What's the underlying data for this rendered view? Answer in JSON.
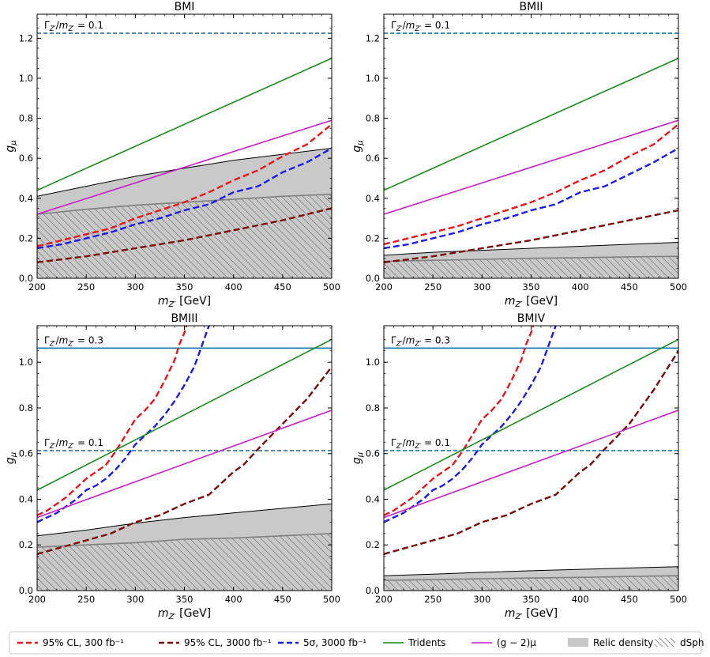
{
  "chart_data": [
    {
      "type": "line",
      "title": "BMI",
      "xlabel": "m_{Z'} [GeV]",
      "ylabel": "g_μ",
      "xlim": [
        200,
        500
      ],
      "ylim": [
        0,
        1.32
      ],
      "xticks": [
        200,
        250,
        300,
        350,
        400,
        450,
        500
      ],
      "yticks": [
        0.0,
        0.2,
        0.4,
        0.6,
        0.8,
        1.0,
        1.2
      ],
      "width_lines": [
        {
          "label": "Γ_{Z'}/m_{Z'} = 0.1",
          "y": 1.225,
          "style": "dashed",
          "color": "#1f77b4"
        }
      ],
      "series": [
        {
          "name": "95% CL, 300 fb^-1",
          "style": "dashed",
          "color": "#e8151b",
          "x": [
            200,
            225,
            250,
            275,
            300,
            325,
            350,
            375,
            400,
            425,
            450,
            475,
            500
          ],
          "y": [
            0.16,
            0.19,
            0.22,
            0.25,
            0.3,
            0.34,
            0.38,
            0.43,
            0.49,
            0.54,
            0.61,
            0.67,
            0.77
          ]
        },
        {
          "name": "95% CL, 3000 fb^-1",
          "style": "dashed",
          "color": "#7a0a0a",
          "x": [
            200,
            250,
            300,
            350,
            400,
            450,
            500
          ],
          "y": [
            0.08,
            0.11,
            0.15,
            0.19,
            0.24,
            0.29,
            0.35
          ]
        },
        {
          "name": "5σ, 3000 fb^-1",
          "style": "dashed",
          "color": "#1a1aeb",
          "x": [
            200,
            225,
            250,
            275,
            300,
            325,
            350,
            375,
            400,
            425,
            450,
            475,
            500
          ],
          "y": [
            0.15,
            0.17,
            0.2,
            0.23,
            0.27,
            0.3,
            0.34,
            0.37,
            0.43,
            0.46,
            0.53,
            0.58,
            0.65
          ]
        },
        {
          "name": "Tridents",
          "style": "solid",
          "color": "#1a8a1a",
          "x": [
            200,
            500
          ],
          "y": [
            0.44,
            1.1
          ]
        },
        {
          "name": "(g-2)_μ",
          "style": "solid",
          "color": "#c81fc8",
          "x": [
            200,
            500
          ],
          "y": [
            0.32,
            0.79
          ]
        }
      ],
      "relic_density": {
        "x": [
          200,
          250,
          300,
          350,
          400,
          450,
          500
        ],
        "upper": [
          0.41,
          0.46,
          0.51,
          0.55,
          0.59,
          0.62,
          0.65
        ],
        "lower": [
          0.32,
          0.345,
          0.365,
          0.38,
          0.395,
          0.41,
          0.42
        ]
      },
      "dsph": {
        "x": [
          200,
          250,
          300,
          350,
          400,
          450,
          500
        ],
        "upper": [
          0.32,
          0.345,
          0.365,
          0.38,
          0.395,
          0.41,
          0.42
        ]
      }
    },
    {
      "type": "line",
      "title": "BMII",
      "xlabel": "m_{Z'} [GeV]",
      "ylabel": "g_μ",
      "xlim": [
        200,
        500
      ],
      "ylim": [
        0,
        1.32
      ],
      "xticks": [
        200,
        250,
        300,
        350,
        400,
        450,
        500
      ],
      "yticks": [
        0.0,
        0.2,
        0.4,
        0.6,
        0.8,
        1.0,
        1.2
      ],
      "width_lines": [
        {
          "label": "Γ_{Z'}/m_{Z'} = 0.1",
          "y": 1.225,
          "style": "dashed",
          "color": "#1f77b4"
        }
      ],
      "series": [
        {
          "name": "95% CL, 300 fb^-1",
          "style": "dashed",
          "color": "#e8151b",
          "x": [
            200,
            225,
            250,
            275,
            300,
            325,
            350,
            375,
            400,
            425,
            450,
            475,
            500
          ],
          "y": [
            0.17,
            0.2,
            0.23,
            0.26,
            0.3,
            0.34,
            0.38,
            0.43,
            0.49,
            0.54,
            0.61,
            0.67,
            0.77
          ]
        },
        {
          "name": "95% CL, 3000 fb^-1",
          "style": "dashed",
          "color": "#7a0a0a",
          "x": [
            200,
            250,
            300,
            350,
            400,
            450,
            500
          ],
          "y": [
            0.08,
            0.11,
            0.15,
            0.19,
            0.24,
            0.29,
            0.34
          ]
        },
        {
          "name": "5σ, 3000 fb^-1",
          "style": "dashed",
          "color": "#1a1aeb",
          "x": [
            200,
            225,
            250,
            275,
            300,
            325,
            350,
            375,
            400,
            425,
            450,
            475,
            500
          ],
          "y": [
            0.15,
            0.17,
            0.2,
            0.23,
            0.27,
            0.3,
            0.34,
            0.37,
            0.43,
            0.46,
            0.52,
            0.58,
            0.65
          ]
        },
        {
          "name": "Tridents",
          "style": "solid",
          "color": "#1a8a1a",
          "x": [
            200,
            500
          ],
          "y": [
            0.44,
            1.1
          ]
        },
        {
          "name": "(g-2)_μ",
          "style": "solid",
          "color": "#c81fc8",
          "x": [
            200,
            500
          ],
          "y": [
            0.32,
            0.79
          ]
        }
      ],
      "relic_density": {
        "x": [
          200,
          250,
          300,
          350,
          400,
          450,
          500
        ],
        "upper": [
          0.115,
          0.13,
          0.14,
          0.15,
          0.16,
          0.17,
          0.18
        ],
        "lower": [
          0.085,
          0.09,
          0.095,
          0.1,
          0.103,
          0.107,
          0.11
        ]
      },
      "dsph": {
        "x": [
          200,
          250,
          300,
          350,
          400,
          450,
          500
        ],
        "upper": [
          0.085,
          0.09,
          0.095,
          0.1,
          0.103,
          0.107,
          0.11
        ]
      }
    },
    {
      "type": "line",
      "title": "BMIII",
      "xlabel": "m_{Z'} [GeV]",
      "ylabel": "g_μ",
      "xlim": [
        200,
        500
      ],
      "ylim": [
        0,
        1.16
      ],
      "xticks": [
        200,
        250,
        300,
        350,
        400,
        450,
        500
      ],
      "yticks": [
        0.0,
        0.2,
        0.4,
        0.6,
        0.8,
        1.0
      ],
      "width_lines": [
        {
          "label": "Γ_{Z'}/m_{Z'} = 0.3",
          "y": 1.062,
          "style": "solid",
          "color": "#1f77b4"
        },
        {
          "label": "Γ_{Z'}/m_{Z'} = 0.1",
          "y": 0.613,
          "style": "dashed",
          "color": "#1f77b4"
        }
      ],
      "series": [
        {
          "name": "95% CL, 300 fb^-1",
          "style": "dashed",
          "color": "#e8151b",
          "x": [
            200,
            210,
            220,
            230,
            240,
            250,
            260,
            270,
            280,
            290,
            300,
            310,
            320,
            330,
            340,
            345,
            350,
            352
          ],
          "y": [
            0.33,
            0.35,
            0.38,
            0.41,
            0.45,
            0.49,
            0.52,
            0.55,
            0.61,
            0.68,
            0.75,
            0.79,
            0.84,
            0.92,
            1.01,
            1.08,
            1.13,
            1.16
          ]
        },
        {
          "name": "95% CL, 3000 fb^-1",
          "style": "dashed",
          "color": "#7a0a0a",
          "x": [
            200,
            225,
            250,
            275,
            300,
            325,
            350,
            375,
            400,
            410,
            425,
            450,
            475,
            500
          ],
          "y": [
            0.16,
            0.19,
            0.22,
            0.25,
            0.3,
            0.33,
            0.38,
            0.42,
            0.52,
            0.55,
            0.62,
            0.73,
            0.84,
            0.98
          ]
        },
        {
          "name": "5σ, 3000 fb^-1",
          "style": "dashed",
          "color": "#1a1aeb",
          "x": [
            200,
            210,
            220,
            230,
            240,
            250,
            260,
            270,
            280,
            290,
            300,
            310,
            320,
            330,
            340,
            350,
            360,
            365,
            370,
            375
          ],
          "y": [
            0.3,
            0.32,
            0.34,
            0.37,
            0.4,
            0.44,
            0.46,
            0.49,
            0.53,
            0.58,
            0.64,
            0.68,
            0.72,
            0.77,
            0.83,
            0.9,
            0.98,
            1.04,
            1.1,
            1.16
          ]
        },
        {
          "name": "Tridents",
          "style": "solid",
          "color": "#1a8a1a",
          "x": [
            200,
            500
          ],
          "y": [
            0.44,
            1.1
          ]
        },
        {
          "name": "(g-2)_μ",
          "style": "solid",
          "color": "#c81fc8",
          "x": [
            200,
            500
          ],
          "y": [
            0.32,
            0.79
          ]
        }
      ],
      "relic_density": {
        "x": [
          200,
          250,
          300,
          350,
          400,
          450,
          500
        ],
        "upper": [
          0.24,
          0.265,
          0.295,
          0.32,
          0.34,
          0.36,
          0.38
        ],
        "lower": [
          0.19,
          0.2,
          0.21,
          0.225,
          0.23,
          0.24,
          0.25
        ]
      },
      "dsph": {
        "x": [
          200,
          250,
          300,
          350,
          400,
          450,
          500
        ],
        "upper": [
          0.19,
          0.2,
          0.21,
          0.225,
          0.23,
          0.24,
          0.25
        ]
      }
    },
    {
      "type": "line",
      "title": "BMIV",
      "xlabel": "m_{Z'} [GeV]",
      "ylabel": "g_μ",
      "xlim": [
        200,
        500
      ],
      "ylim": [
        0,
        1.16
      ],
      "xticks": [
        200,
        250,
        300,
        350,
        400,
        450,
        500
      ],
      "yticks": [
        0.0,
        0.2,
        0.4,
        0.6,
        0.8,
        1.0
      ],
      "width_lines": [
        {
          "label": "Γ_{Z'}/m_{Z'} = 0.3",
          "y": 1.062,
          "style": "solid",
          "color": "#1f77b4"
        },
        {
          "label": "Γ_{Z'}/m_{Z'} = 0.1",
          "y": 0.613,
          "style": "dashed",
          "color": "#1f77b4"
        }
      ],
      "series": [
        {
          "name": "95% CL, 300 fb^-1",
          "style": "dashed",
          "color": "#e8151b",
          "x": [
            200,
            210,
            220,
            230,
            240,
            250,
            260,
            270,
            280,
            290,
            300,
            310,
            320,
            330,
            340,
            345,
            350,
            352
          ],
          "y": [
            0.33,
            0.35,
            0.38,
            0.41,
            0.45,
            0.49,
            0.52,
            0.55,
            0.61,
            0.68,
            0.75,
            0.79,
            0.84,
            0.92,
            1.01,
            1.08,
            1.13,
            1.16
          ]
        },
        {
          "name": "95% CL, 3000 fb^-1",
          "style": "dashed",
          "color": "#7a0a0a",
          "x": [
            200,
            225,
            250,
            275,
            300,
            325,
            350,
            375,
            400,
            410,
            425,
            450,
            475,
            500
          ],
          "y": [
            0.16,
            0.19,
            0.22,
            0.25,
            0.3,
            0.33,
            0.38,
            0.42,
            0.52,
            0.55,
            0.62,
            0.73,
            0.88,
            1.05
          ]
        },
        {
          "name": "5σ, 3000 fb^-1",
          "style": "dashed",
          "color": "#1a1aeb",
          "x": [
            200,
            210,
            220,
            230,
            240,
            250,
            260,
            270,
            280,
            290,
            300,
            310,
            320,
            330,
            340,
            350,
            360,
            365,
            370,
            375
          ],
          "y": [
            0.3,
            0.32,
            0.34,
            0.37,
            0.4,
            0.44,
            0.46,
            0.49,
            0.53,
            0.58,
            0.64,
            0.68,
            0.72,
            0.77,
            0.83,
            0.9,
            0.98,
            1.04,
            1.1,
            1.16
          ]
        },
        {
          "name": "Tridents",
          "style": "solid",
          "color": "#1a8a1a",
          "x": [
            200,
            500
          ],
          "y": [
            0.44,
            1.1
          ]
        },
        {
          "name": "(g-2)_μ",
          "style": "solid",
          "color": "#c81fc8",
          "x": [
            200,
            500
          ],
          "y": [
            0.32,
            0.79
          ]
        }
      ],
      "relic_density": {
        "x": [
          200,
          250,
          300,
          350,
          400,
          450,
          500
        ],
        "upper": [
          0.065,
          0.072,
          0.08,
          0.087,
          0.093,
          0.099,
          0.105
        ],
        "lower": [
          0.045,
          0.048,
          0.052,
          0.055,
          0.058,
          0.062,
          0.065
        ]
      },
      "dsph": {
        "x": [
          200,
          250,
          300,
          350,
          400,
          450,
          500
        ],
        "upper": [
          0.045,
          0.048,
          0.052,
          0.055,
          0.058,
          0.062,
          0.065
        ]
      }
    }
  ],
  "legend": {
    "placement": "bottom",
    "entries": [
      {
        "label": "95% CL, 300 fb⁻¹",
        "kind": "dashed",
        "color": "#e8151b"
      },
      {
        "label": "95% CL, 3000 fb⁻¹",
        "kind": "dashed",
        "color": "#7a0a0a"
      },
      {
        "label": "5σ, 3000 fb⁻¹",
        "kind": "dashed",
        "color": "#1a1aeb"
      },
      {
        "label": "Tridents",
        "kind": "solid",
        "color": "#1a8a1a"
      },
      {
        "label": "(g − 2)μ",
        "kind": "solid",
        "color": "#c81fc8"
      },
      {
        "label": "Relic density",
        "kind": "patch",
        "color": "#c8c8c8"
      },
      {
        "label": "dSph",
        "kind": "hatch",
        "color": "#808080"
      }
    ]
  },
  "colors": {
    "relic_fill": "#c9c9c9",
    "relic_edge": "#000000",
    "dsph_edge": "#808080",
    "hatch": "#7a7a7a"
  }
}
